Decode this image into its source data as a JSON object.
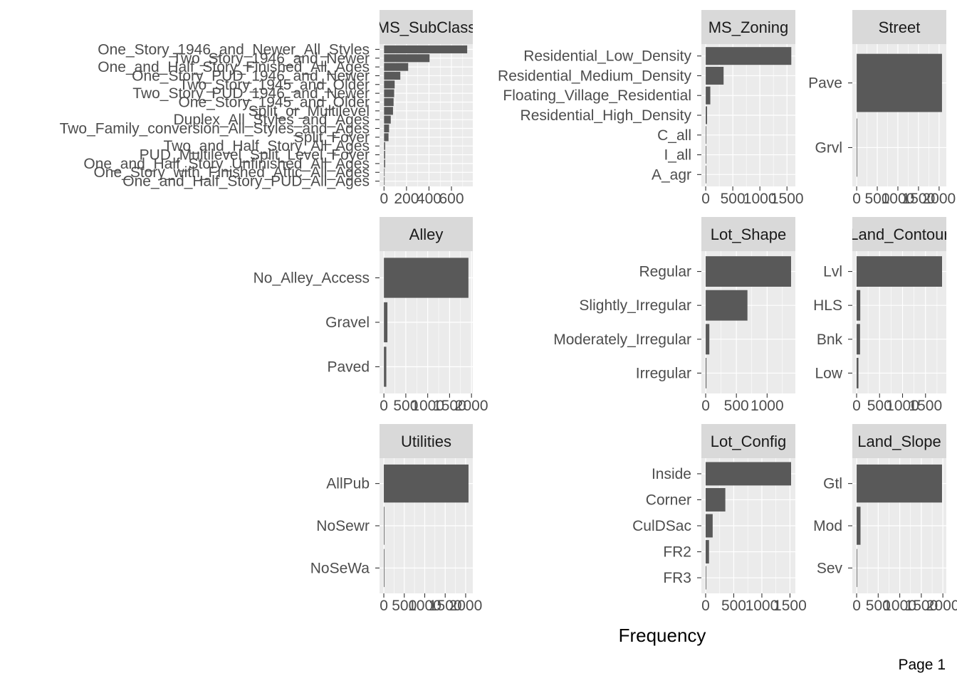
{
  "page_label": "Page 1",
  "chart_data": {
    "type": "bar",
    "orientation": "horizontal",
    "xlabel": "Frequency",
    "panel_background": "#ebebeb",
    "strip_background": "#d9d9d9",
    "bar_color": "#595959",
    "grid_color": "#ffffff",
    "panels": [
      {
        "facet": "MS_SubClass",
        "categories": [
          "One_Story_1946_and_Newer_All_Styles",
          "Two_Story_1946_and_Newer",
          "One_and_Half_Story_Finished_All_Ages",
          "One_Story_PUD_1946_and_Newer",
          "Two_Story_1945_and_Older",
          "Two_Story_PUD_1946_and_Newer",
          "One_Story_1945_and_Older",
          "Split_or_Multilevel",
          "Duplex_All_Styles_and_Ages",
          "Two_Family_conversion_All_Styles_and_Ages",
          "Split_Foyer",
          "Two_and_Half_Story_All_Ages",
          "PUD_Multilevel_Split_Level_Foyer",
          "One_and_Half_Story_Unfinished_All_Ages",
          "One_Story_with_Finished_Attic_All_Ages",
          "One_and_Half_Story_PUD_All_Ages"
        ],
        "values": [
          740,
          405,
          215,
          145,
          95,
          90,
          85,
          80,
          60,
          45,
          40,
          10,
          10,
          10,
          5,
          5
        ],
        "xlim": [
          -40,
          790
        ],
        "ticks": [
          0,
          200,
          400,
          600
        ]
      },
      {
        "facet": "MS_Zoning",
        "categories": [
          "Residential_Low_Density",
          "Residential_Medium_Density",
          "Floating_Village_Residential",
          "Residential_High_Density",
          "C_all",
          "I_all",
          "A_agr"
        ],
        "values": [
          1580,
          330,
          85,
          25,
          10,
          2,
          2
        ],
        "xlim": [
          -80,
          1655
        ],
        "ticks": [
          0,
          500,
          1000,
          1500
        ]
      },
      {
        "facet": "Street",
        "categories": [
          "Pave",
          "Grvl"
        ],
        "values": [
          2070,
          10
        ],
        "xlim": [
          -105,
          2175
        ],
        "ticks": [
          0,
          500,
          1000,
          1500,
          2000
        ]
      },
      {
        "facet": "Alley",
        "categories": [
          "No_Alley_Access",
          "Gravel",
          "Paved"
        ],
        "values": [
          1930,
          80,
          55
        ],
        "xlim": [
          -100,
          2030
        ],
        "ticks": [
          0,
          500,
          1000,
          1500,
          2000
        ]
      },
      {
        "facet": "Lot_Shape",
        "categories": [
          "Regular",
          "Slightly_Irregular",
          "Moderately_Irregular",
          "Irregular"
        ],
        "values": [
          1390,
          680,
          60,
          12
        ],
        "xlim": [
          -70,
          1460
        ],
        "ticks": [
          0,
          500,
          1000
        ]
      },
      {
        "facet": "Land_Contour",
        "categories": [
          "Lvl",
          "HLS",
          "Bnk",
          "Low"
        ],
        "values": [
          1860,
          80,
          75,
          40
        ],
        "xlim": [
          -93,
          1953
        ],
        "ticks": [
          0,
          500,
          1000,
          1500
        ]
      },
      {
        "facet": "Utilities",
        "categories": [
          "AllPub",
          "NoSewr",
          "NoSeWa"
        ],
        "values": [
          2070,
          2,
          1
        ],
        "xlim": [
          -105,
          2175
        ],
        "ticks": [
          0,
          500,
          1000,
          1500,
          2000
        ]
      },
      {
        "facet": "Lot_Config",
        "categories": [
          "Inside",
          "Corner",
          "CulDSac",
          "FR2",
          "FR3"
        ],
        "values": [
          1520,
          350,
          125,
          60,
          10
        ],
        "xlim": [
          -76,
          1596
        ],
        "ticks": [
          0,
          500,
          1000,
          1500
        ]
      },
      {
        "facet": "Land_Slope",
        "categories": [
          "Gtl",
          "Mod",
          "Sev"
        ],
        "values": [
          1980,
          90,
          12
        ],
        "xlim": [
          -100,
          2080
        ],
        "ticks": [
          0,
          500,
          1000,
          1500,
          2000
        ]
      }
    ]
  }
}
